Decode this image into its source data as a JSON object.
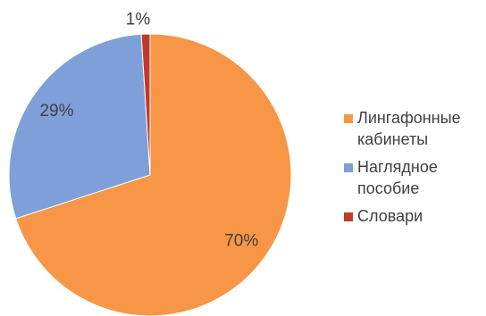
{
  "chart_data": {
    "type": "pie",
    "title": "",
    "categories": [
      "Лингафонные кабинеты",
      "Наглядное пособие",
      "Словари"
    ],
    "values": [
      70,
      29,
      1
    ],
    "data_labels": [
      "70%",
      "29%",
      "1%"
    ],
    "colors": [
      "#F79646",
      "#7F9FD9",
      "#C0392B"
    ],
    "legend_placement": "right",
    "legend": [
      {
        "lines": [
          "Лингафонные",
          "кабинеты"
        ],
        "color": "#F79646"
      },
      {
        "lines": [
          "Наглядное",
          "пособие"
        ],
        "color": "#7F9FD9"
      },
      {
        "lines": [
          "Словари"
        ],
        "color": "#C0392B"
      }
    ]
  }
}
